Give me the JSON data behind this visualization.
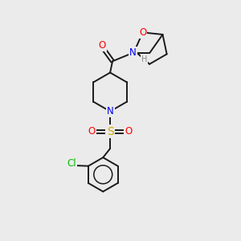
{
  "bg_color": "#ebebeb",
  "bond_color": "#1a1a1a",
  "atom_colors": {
    "O": "#ff0000",
    "N": "#0000ee",
    "S": "#ccaa00",
    "Cl": "#00bb00",
    "H": "#888888",
    "C": "#1a1a1a"
  },
  "font_size_atom": 8.5,
  "font_size_small": 7.0,
  "lw": 1.4
}
